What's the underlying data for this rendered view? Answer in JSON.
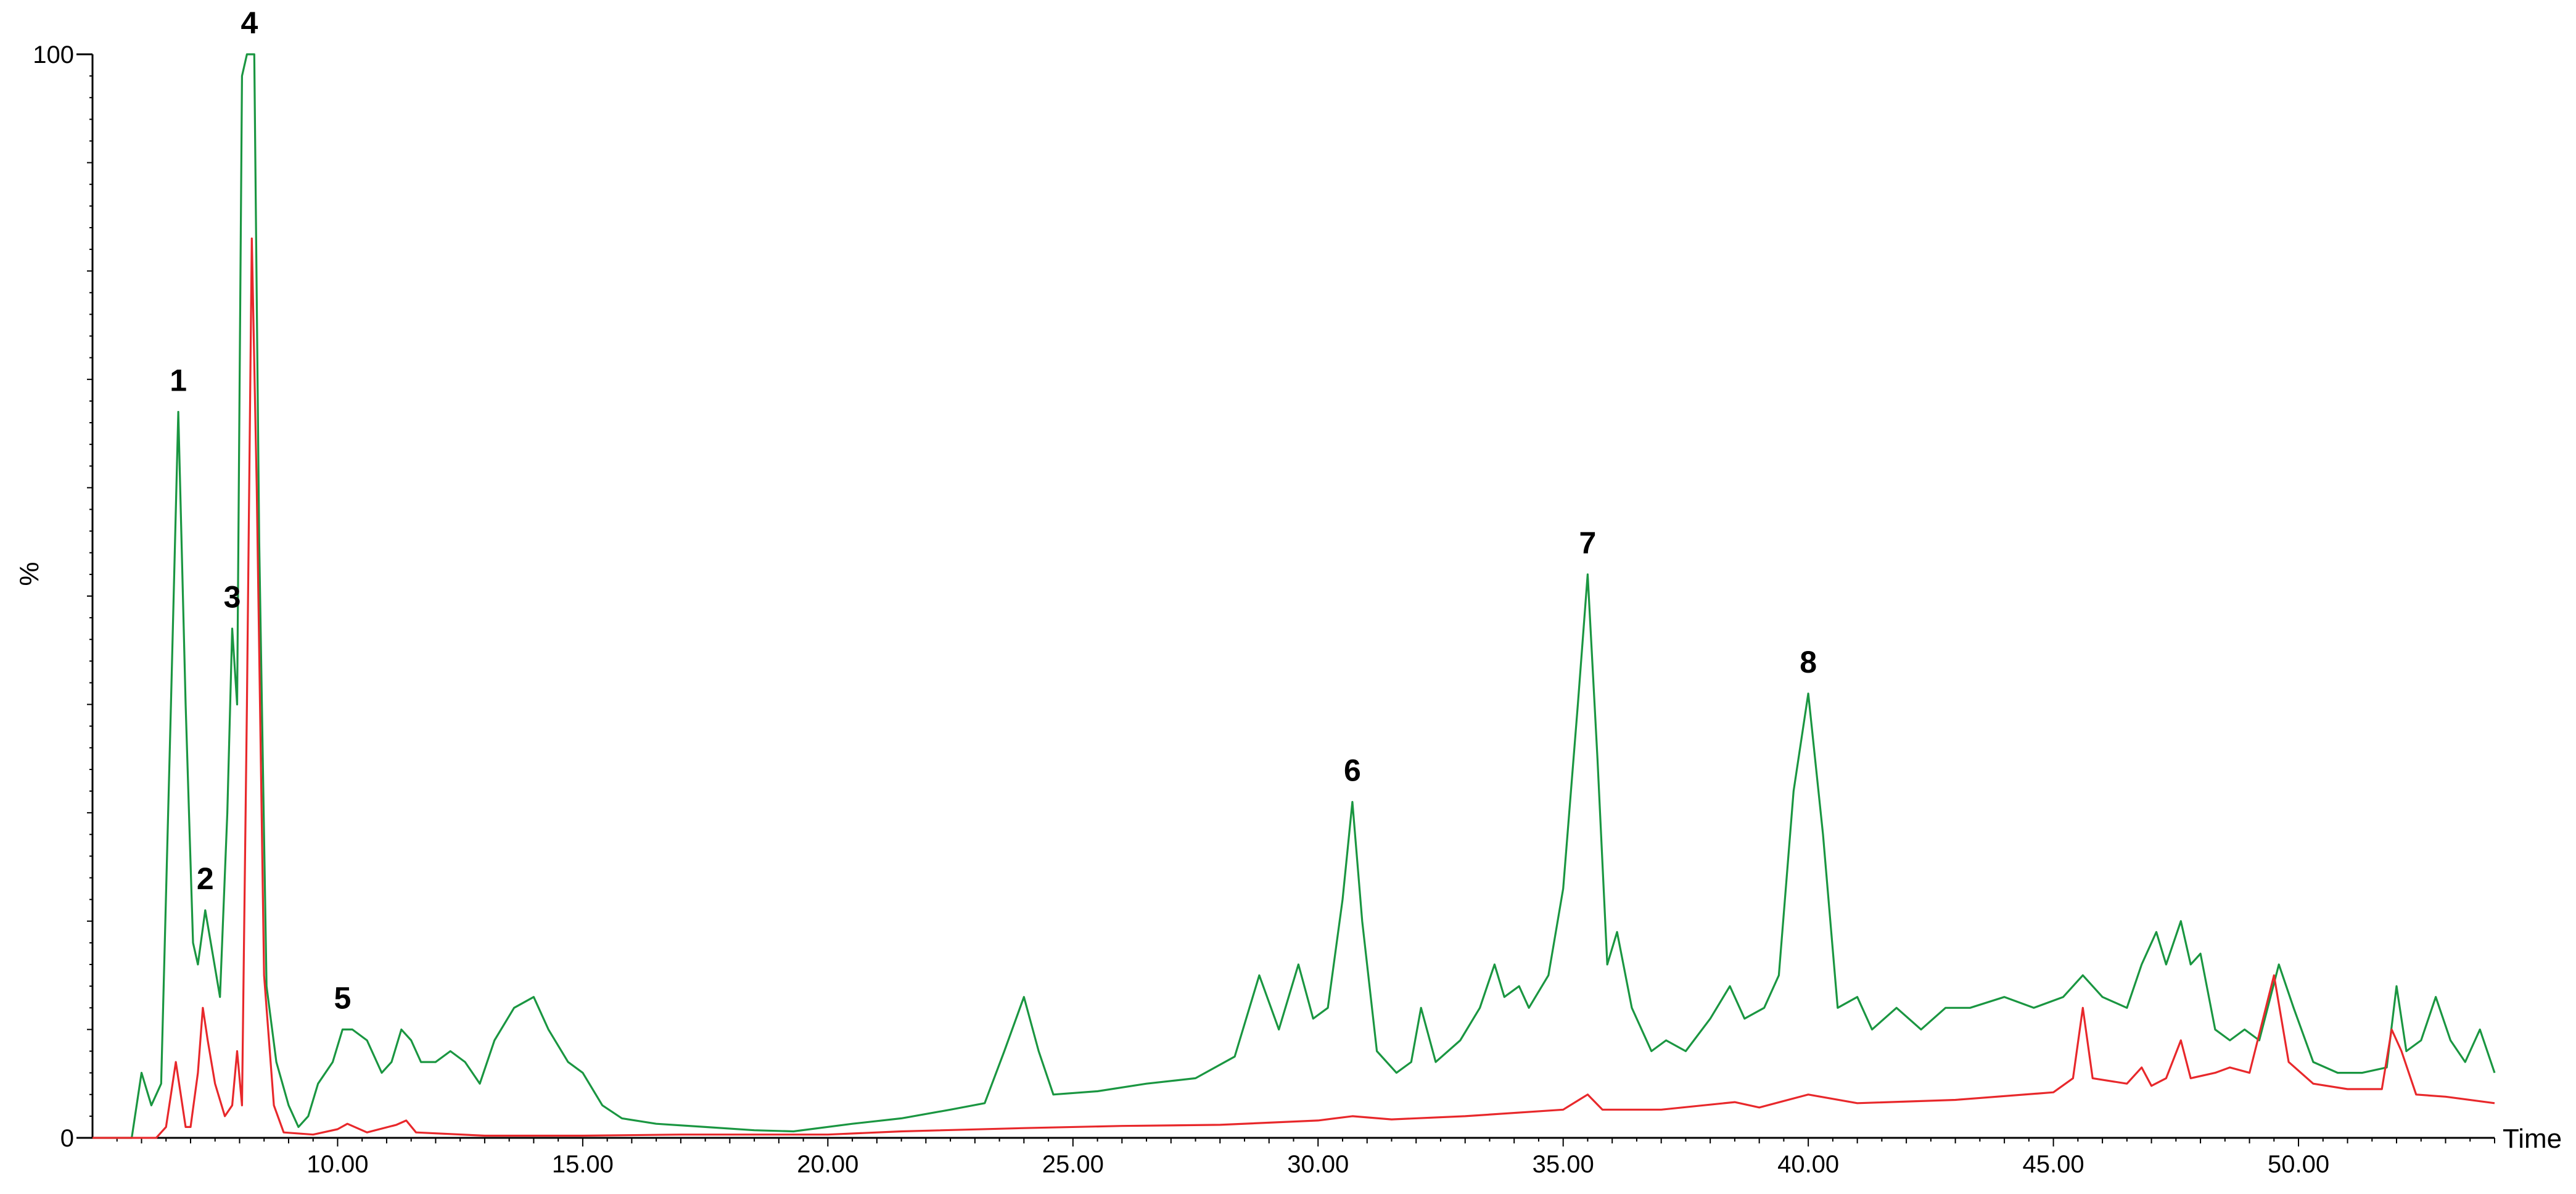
{
  "chart_data": {
    "type": "line",
    "xlabel": "Time",
    "ylabel": "%",
    "xlim": [
      5,
      54
    ],
    "ylim": [
      0,
      100
    ],
    "x_ticks": [
      "10.00",
      "15.00",
      "20.00",
      "25.00",
      "30.00",
      "35.00",
      "40.00",
      "45.00",
      "50.00"
    ],
    "x_tick_values": [
      10,
      15,
      20,
      25,
      30,
      35,
      40,
      45,
      50
    ],
    "y_ticks": [
      "0",
      "100"
    ],
    "y_tick_values": [
      0,
      100
    ],
    "grid": false,
    "legend": "none",
    "series": [
      {
        "color": "#1a9641",
        "points": [
          [
            5.0,
            0
          ],
          [
            5.8,
            0
          ],
          [
            6.0,
            6
          ],
          [
            6.2,
            3
          ],
          [
            6.4,
            5
          ],
          [
            6.6,
            40
          ],
          [
            6.75,
            67
          ],
          [
            6.9,
            40
          ],
          [
            7.05,
            18
          ],
          [
            7.15,
            16
          ],
          [
            7.3,
            21
          ],
          [
            7.45,
            17
          ],
          [
            7.6,
            13
          ],
          [
            7.75,
            30
          ],
          [
            7.85,
            47
          ],
          [
            7.95,
            40
          ],
          [
            8.05,
            98
          ],
          [
            8.15,
            100
          ],
          [
            8.3,
            100
          ],
          [
            8.4,
            55
          ],
          [
            8.55,
            14
          ],
          [
            8.75,
            7
          ],
          [
            9.0,
            3
          ],
          [
            9.2,
            1
          ],
          [
            9.4,
            2
          ],
          [
            9.6,
            5
          ],
          [
            9.9,
            7
          ],
          [
            10.1,
            10
          ],
          [
            10.3,
            10
          ],
          [
            10.6,
            9
          ],
          [
            10.9,
            6
          ],
          [
            11.1,
            7
          ],
          [
            11.3,
            10
          ],
          [
            11.5,
            9
          ],
          [
            11.7,
            7
          ],
          [
            12.0,
            7
          ],
          [
            12.3,
            8
          ],
          [
            12.6,
            7
          ],
          [
            12.9,
            5
          ],
          [
            13.2,
            9
          ],
          [
            13.6,
            12
          ],
          [
            14.0,
            13
          ],
          [
            14.3,
            10
          ],
          [
            14.7,
            7
          ],
          [
            15.0,
            6
          ],
          [
            15.4,
            3
          ],
          [
            15.8,
            1.8
          ],
          [
            16.5,
            1.3
          ],
          [
            17.5,
            1.0
          ],
          [
            18.5,
            0.7
          ],
          [
            19.3,
            0.6
          ],
          [
            20.5,
            1.3
          ],
          [
            21.5,
            1.8
          ],
          [
            22.5,
            2.6
          ],
          [
            23.2,
            3.2
          ],
          [
            23.6,
            8
          ],
          [
            24.0,
            13
          ],
          [
            24.3,
            8
          ],
          [
            24.6,
            4
          ],
          [
            25.5,
            4.3
          ],
          [
            26.5,
            5
          ],
          [
            27.5,
            5.5
          ],
          [
            28.3,
            7.5
          ],
          [
            28.8,
            15
          ],
          [
            29.2,
            10
          ],
          [
            29.6,
            16
          ],
          [
            29.9,
            11
          ],
          [
            30.2,
            12
          ],
          [
            30.5,
            22
          ],
          [
            30.7,
            31
          ],
          [
            30.9,
            20
          ],
          [
            31.2,
            8
          ],
          [
            31.6,
            6
          ],
          [
            31.9,
            7
          ],
          [
            32.1,
            12
          ],
          [
            32.4,
            7
          ],
          [
            32.9,
            9
          ],
          [
            33.3,
            12
          ],
          [
            33.6,
            16
          ],
          [
            33.8,
            13
          ],
          [
            34.1,
            14
          ],
          [
            34.3,
            12
          ],
          [
            34.7,
            15
          ],
          [
            35.0,
            23
          ],
          [
            35.3,
            40
          ],
          [
            35.5,
            52
          ],
          [
            35.7,
            35
          ],
          [
            35.9,
            16
          ],
          [
            36.1,
            19
          ],
          [
            36.4,
            12
          ],
          [
            36.8,
            8
          ],
          [
            37.1,
            9
          ],
          [
            37.5,
            8
          ],
          [
            38.0,
            11
          ],
          [
            38.4,
            14
          ],
          [
            38.7,
            11
          ],
          [
            39.1,
            12
          ],
          [
            39.4,
            15
          ],
          [
            39.7,
            32
          ],
          [
            40.0,
            41
          ],
          [
            40.3,
            28
          ],
          [
            40.6,
            12
          ],
          [
            41.0,
            13
          ],
          [
            41.3,
            10
          ],
          [
            41.8,
            12
          ],
          [
            42.3,
            10
          ],
          [
            42.8,
            12
          ],
          [
            43.3,
            12
          ],
          [
            44.0,
            13
          ],
          [
            44.6,
            12
          ],
          [
            45.2,
            13
          ],
          [
            45.6,
            15
          ],
          [
            46.0,
            13
          ],
          [
            46.5,
            12
          ],
          [
            46.8,
            16
          ],
          [
            47.1,
            19
          ],
          [
            47.3,
            16
          ],
          [
            47.6,
            20
          ],
          [
            47.8,
            16
          ],
          [
            48.0,
            17
          ],
          [
            48.3,
            10
          ],
          [
            48.6,
            9
          ],
          [
            48.9,
            10
          ],
          [
            49.2,
            9
          ],
          [
            49.6,
            16
          ],
          [
            49.9,
            12
          ],
          [
            50.3,
            7
          ],
          [
            50.8,
            6
          ],
          [
            51.3,
            6
          ],
          [
            51.8,
            6.5
          ],
          [
            52.0,
            14
          ],
          [
            52.2,
            8
          ],
          [
            52.5,
            9
          ],
          [
            52.8,
            13
          ],
          [
            53.1,
            9
          ],
          [
            53.4,
            7
          ],
          [
            53.7,
            10
          ],
          [
            54.0,
            6
          ]
        ]
      },
      {
        "color": "#e8282b",
        "points": [
          [
            5.0,
            0
          ],
          [
            6.3,
            0
          ],
          [
            6.5,
            1
          ],
          [
            6.6,
            4
          ],
          [
            6.7,
            7
          ],
          [
            6.8,
            4
          ],
          [
            6.9,
            1
          ],
          [
            7.0,
            1
          ],
          [
            7.15,
            6
          ],
          [
            7.25,
            12
          ],
          [
            7.35,
            9
          ],
          [
            7.5,
            5
          ],
          [
            7.7,
            2
          ],
          [
            7.85,
            3
          ],
          [
            7.95,
            8
          ],
          [
            8.05,
            3
          ],
          [
            8.15,
            40
          ],
          [
            8.25,
            83
          ],
          [
            8.35,
            60
          ],
          [
            8.5,
            15
          ],
          [
            8.7,
            3
          ],
          [
            8.9,
            0.5
          ],
          [
            9.5,
            0.3
          ],
          [
            10.0,
            0.8
          ],
          [
            10.2,
            1.3
          ],
          [
            10.6,
            0.5
          ],
          [
            11.2,
            1.2
          ],
          [
            11.4,
            1.6
          ],
          [
            11.6,
            0.5
          ],
          [
            13.0,
            0.2
          ],
          [
            15.0,
            0.2
          ],
          [
            17.0,
            0.3
          ],
          [
            20.0,
            0.3
          ],
          [
            21.5,
            0.6
          ],
          [
            24.0,
            0.9
          ],
          [
            26.0,
            1.1
          ],
          [
            28.0,
            1.2
          ],
          [
            30.0,
            1.6
          ],
          [
            30.7,
            2.0
          ],
          [
            31.5,
            1.7
          ],
          [
            33.0,
            2.0
          ],
          [
            35.0,
            2.6
          ],
          [
            35.5,
            4
          ],
          [
            35.8,
            2.6
          ],
          [
            37.0,
            2.6
          ],
          [
            38.5,
            3.3
          ],
          [
            39.0,
            2.8
          ],
          [
            40.0,
            4
          ],
          [
            41.0,
            3.2
          ],
          [
            43.0,
            3.5
          ],
          [
            45.0,
            4.2
          ],
          [
            45.4,
            5.5
          ],
          [
            45.6,
            12
          ],
          [
            45.8,
            5.5
          ],
          [
            46.5,
            5
          ],
          [
            46.8,
            6.5
          ],
          [
            47.0,
            4.8
          ],
          [
            47.3,
            5.5
          ],
          [
            47.6,
            9
          ],
          [
            47.8,
            5.5
          ],
          [
            48.3,
            6
          ],
          [
            48.6,
            6.5
          ],
          [
            49.0,
            6
          ],
          [
            49.5,
            15
          ],
          [
            49.8,
            7
          ],
          [
            50.3,
            5
          ],
          [
            51.0,
            4.5
          ],
          [
            51.7,
            4.5
          ],
          [
            51.9,
            10
          ],
          [
            52.1,
            8
          ],
          [
            52.4,
            4
          ],
          [
            53.0,
            3.8
          ],
          [
            54.0,
            3.2
          ]
        ]
      }
    ],
    "peak_labels": [
      {
        "text": "1",
        "x": 6.75,
        "y": 67
      },
      {
        "text": "2",
        "x": 7.3,
        "y": 21
      },
      {
        "text": "3",
        "x": 7.85,
        "y": 47
      },
      {
        "text": "4",
        "x": 8.2,
        "y": 100
      },
      {
        "text": "5",
        "x": 10.1,
        "y": 10
      },
      {
        "text": "6",
        "x": 30.7,
        "y": 31
      },
      {
        "text": "7",
        "x": 35.5,
        "y": 52
      },
      {
        "text": "8",
        "x": 40.0,
        "y": 41
      }
    ]
  }
}
